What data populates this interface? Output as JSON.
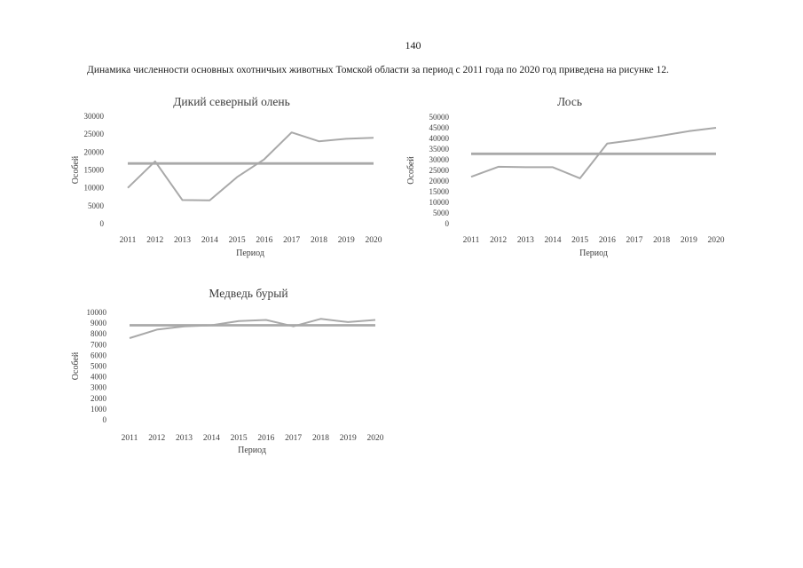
{
  "page": {
    "number": "140",
    "intro_text": "Динамика численности основных охотничьих животных Томской области за период с 2011 года по 2020 год приведена на рисунке 12."
  },
  "colors": {
    "line": "#a9a9a9",
    "chart_text": "#3d3d3d",
    "body_text": "#1a1a1a",
    "background": "#ffffff"
  },
  "chart_data": [
    {
      "type": "line",
      "title": "Дикий северный олень",
      "xlabel": "Период",
      "ylabel": "Особей",
      "categories": [
        "2011",
        "2012",
        "2013",
        "2014",
        "2015",
        "2016",
        "2017",
        "2018",
        "2019",
        "2020"
      ],
      "series": [
        {
          "values": [
            10000,
            17400,
            6600,
            6500,
            13000,
            18000,
            25500,
            23000,
            23700,
            24000
          ]
        },
        {
          "values": [
            16800,
            16800,
            16800,
            16800,
            16800,
            16800,
            16800,
            16800,
            16800,
            16800
          ]
        }
      ],
      "ylim": [
        0,
        30000
      ],
      "ytick_step": 5000,
      "grid": false,
      "legend": "none"
    },
    {
      "type": "line",
      "title": "Лось",
      "xlabel": "Период",
      "ylabel": "Особей",
      "categories": [
        "2011",
        "2012",
        "2013",
        "2014",
        "2015",
        "2016",
        "2017",
        "2018",
        "2019",
        "2020"
      ],
      "series": [
        {
          "values": [
            22000,
            26700,
            26500,
            26500,
            21300,
            37600,
            39300,
            41300,
            43400,
            45000
          ]
        },
        {
          "values": [
            32800,
            32800,
            32800,
            32800,
            32800,
            32800,
            32800,
            32800,
            32800,
            32800
          ]
        }
      ],
      "ylim": [
        0,
        50000
      ],
      "ytick_step": 5000,
      "grid": false,
      "legend": "none"
    },
    {
      "type": "line",
      "title": "Медведь бурый",
      "xlabel": "Период",
      "ylabel": "Особей",
      "categories": [
        "2011",
        "2012",
        "2013",
        "2014",
        "2015",
        "2016",
        "2017",
        "2018",
        "2019",
        "2020"
      ],
      "series": [
        {
          "values": [
            7600,
            8400,
            8700,
            8800,
            9200,
            9300,
            8700,
            9400,
            9100,
            9300
          ]
        },
        {
          "values": [
            8800,
            8800,
            8800,
            8800,
            8800,
            8800,
            8800,
            8800,
            8800,
            8800
          ]
        }
      ],
      "ylim": [
        0,
        10000
      ],
      "ytick_step": 1000,
      "grid": false,
      "legend": "none"
    }
  ]
}
